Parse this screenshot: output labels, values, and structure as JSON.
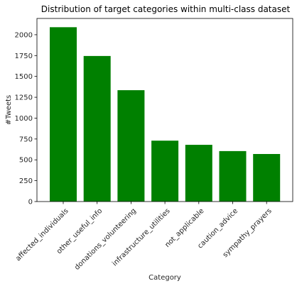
{
  "chart_data": {
    "type": "bar",
    "title": "Distribution of target categories within multi-class dataset",
    "xlabel": "Category",
    "ylabel": "#Tweets",
    "categories": [
      "affected_individuals",
      "other_useful_info",
      "donations_volunteering",
      "infrastructure_utilities",
      "not_applicable",
      "caution_advice",
      "sympathy_prayers"
    ],
    "values": [
      2090,
      1745,
      1335,
      730,
      680,
      605,
      570
    ],
    "ylim": [
      0,
      2195
    ],
    "yticks": [
      0,
      250,
      500,
      750,
      1000,
      1250,
      1500,
      1750,
      2000
    ],
    "grid": false,
    "bar_color": "#008000"
  }
}
